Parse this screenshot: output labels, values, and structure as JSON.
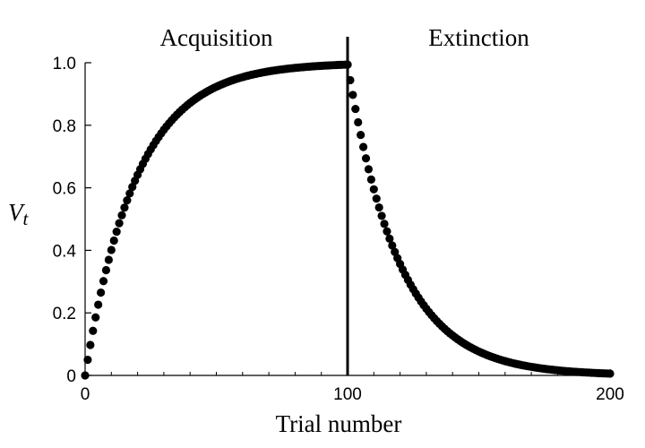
{
  "chart_data": {
    "type": "scatter",
    "title": "",
    "xlabel": "Trial number",
    "ylabel_main": "V",
    "ylabel_sub": "t",
    "xlim": [
      0,
      200
    ],
    "ylim": [
      0,
      1.0
    ],
    "xticks": [
      0,
      100,
      200
    ],
    "xtick_labels": [
      "0",
      "100",
      "200"
    ],
    "yticks": [
      0,
      0.2,
      0.4,
      0.6,
      0.8,
      1.0
    ],
    "ytick_labels": [
      "0",
      "0.2",
      "0.4",
      "0.6",
      "0.8",
      "1.0"
    ],
    "minor_xtick_step": 10,
    "grid": false,
    "divider_x": 100,
    "annotations": [
      {
        "text": "Acquisition",
        "x": 50,
        "y": 1.07
      },
      {
        "text": "Extinction",
        "x": 150,
        "y": 1.07
      }
    ],
    "series": [
      {
        "phase": "acquisition",
        "x_start": 0,
        "x_end": 100,
        "y0": 0,
        "rate": 0.05,
        "asymptote": 1.0
      },
      {
        "phase": "extinction",
        "x_start": 100,
        "x_end": 200,
        "y0": 0.994,
        "rate": 0.05,
        "asymptote": 0.0
      }
    ],
    "point_color": "#000000"
  }
}
